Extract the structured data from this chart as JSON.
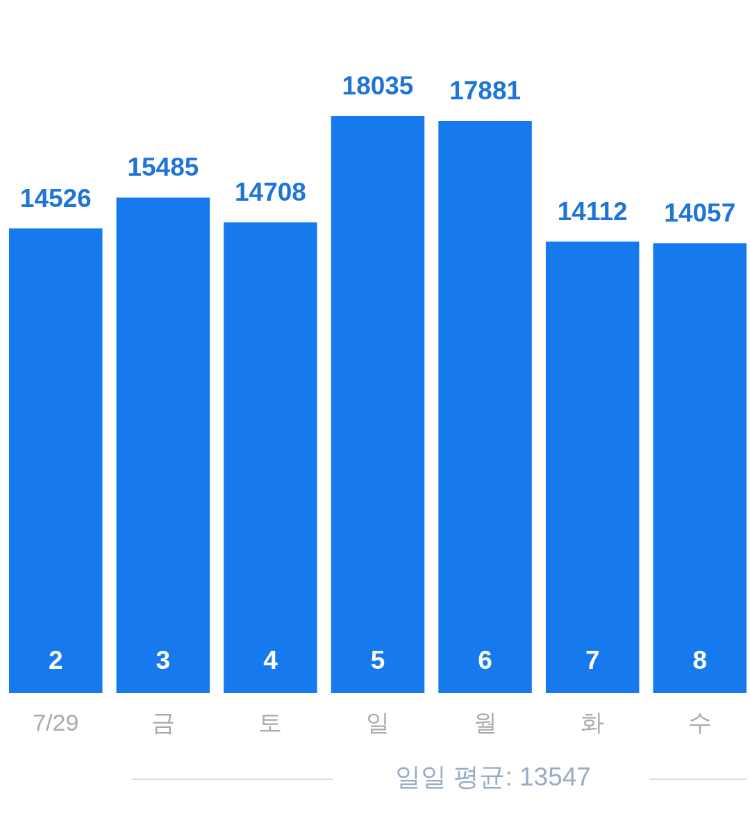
{
  "chart_data": {
    "type": "bar",
    "categories": [
      "7/29",
      "금",
      "토",
      "일",
      "월",
      "화",
      "수"
    ],
    "values": [
      14526,
      15485,
      14708,
      18035,
      17881,
      14112,
      14057
    ],
    "color": "#1779ee",
    "data_labels": true,
    "tick_labels": "x",
    "annotations": [
      {
        "text": "2",
        "x": "7/29",
        "y": 0
      },
      {
        "text": "3",
        "x": "금",
        "y": 0
      },
      {
        "text": "4",
        "x": "토",
        "y": 0
      },
      {
        "text": "5",
        "x": "일",
        "y": 0
      },
      {
        "text": "6",
        "x": "월",
        "y": 0
      },
      {
        "text": "7",
        "x": "화",
        "y": 0
      },
      {
        "text": "8",
        "x": "수",
        "y": 0
      },
      "일일 평균: 13547"
    ]
  }
}
